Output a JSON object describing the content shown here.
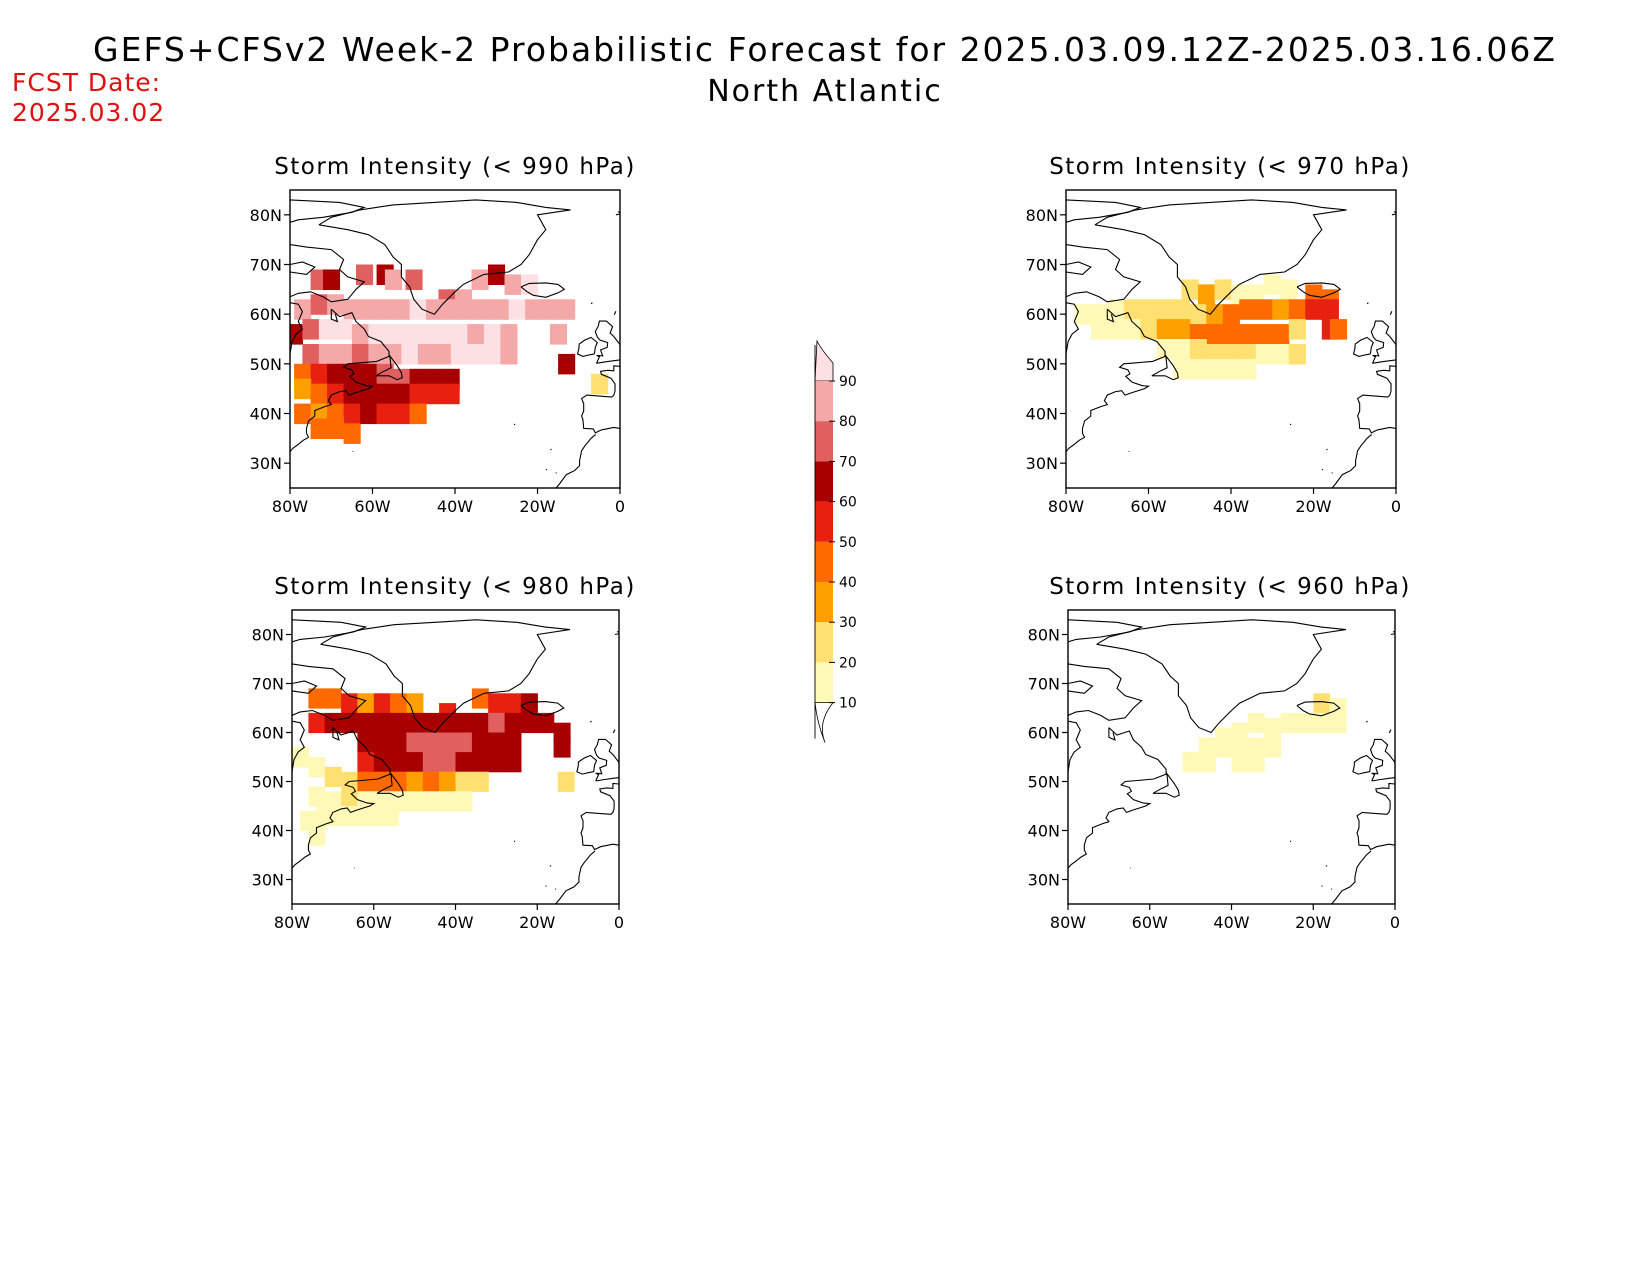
{
  "header": {
    "title": "GEFS+CFSv2 Week-2 Probabilistic Forecast for 2025.03.09.12Z-2025.03.16.06Z",
    "subtitle": "North Atlantic",
    "fcst_label": "FCST Date:",
    "fcst_value": "2025.03.02"
  },
  "axes": {
    "lon_labels": [
      "80W",
      "60W",
      "40W",
      "20W",
      "0"
    ],
    "lat_labels": [
      "80N",
      "70N",
      "60N",
      "50N",
      "40N",
      "30N"
    ],
    "lon_values": [
      -80,
      -60,
      -40,
      -20,
      0
    ],
    "lat_values": [
      80,
      70,
      60,
      50,
      40,
      30
    ],
    "lon_range": [
      -80,
      0
    ],
    "lat_range": [
      25,
      85
    ]
  },
  "colorbar": {
    "levels": [
      10,
      20,
      30,
      40,
      50,
      60,
      70,
      80,
      90
    ],
    "colors": [
      "#fff9b8",
      "#ffe070",
      "#ffa000",
      "#ff6a00",
      "#e82010",
      "#a80000",
      "#e06060",
      "#f4a8a8",
      "#fde0e4"
    ]
  },
  "panels": [
    {
      "id": "p990",
      "title": "Storm Intensity (< 990 hPa)",
      "cells": [
        [
          -73,
          67,
          70
        ],
        [
          -70,
          67,
          60
        ],
        [
          -62,
          68,
          70
        ],
        [
          -57,
          68,
          60
        ],
        [
          -55,
          67,
          80
        ],
        [
          -50,
          67,
          70
        ],
        [
          -42,
          63,
          70
        ],
        [
          -38,
          63,
          80
        ],
        [
          -34,
          67,
          80
        ],
        [
          -30,
          68,
          60
        ],
        [
          -26,
          66,
          80
        ],
        [
          -22,
          66,
          90
        ],
        [
          -77,
          61,
          80
        ],
        [
          -73,
          62,
          70
        ],
        [
          -69,
          62,
          80
        ],
        [
          -65,
          61,
          80
        ],
        [
          -61,
          61,
          80
        ],
        [
          -57,
          61,
          80
        ],
        [
          -53,
          61,
          80
        ],
        [
          -49,
          61,
          90
        ],
        [
          -45,
          61,
          80
        ],
        [
          -41,
          61,
          80
        ],
        [
          -37,
          61,
          80
        ],
        [
          -33,
          61,
          80
        ],
        [
          -29,
          61,
          80
        ],
        [
          -25,
          61,
          90
        ],
        [
          -21,
          61,
          80
        ],
        [
          -17,
          61,
          80
        ],
        [
          -13,
          61,
          80
        ],
        [
          -79,
          56,
          60
        ],
        [
          -75,
          57,
          70
        ],
        [
          -71,
          57,
          90
        ],
        [
          -67,
          57,
          90
        ],
        [
          -63,
          56,
          80
        ],
        [
          -59,
          56,
          90
        ],
        [
          -55,
          56,
          90
        ],
        [
          -51,
          56,
          90
        ],
        [
          -47,
          56,
          90
        ],
        [
          -43,
          56,
          90
        ],
        [
          -39,
          56,
          90
        ],
        [
          -35,
          56,
          80
        ],
        [
          -31,
          56,
          90
        ],
        [
          -27,
          56,
          80
        ],
        [
          -15,
          56,
          80
        ],
        [
          -75,
          52,
          70
        ],
        [
          -71,
          52,
          80
        ],
        [
          -67,
          52,
          80
        ],
        [
          -63,
          52,
          70
        ],
        [
          -59,
          52,
          80
        ],
        [
          -55,
          52,
          80
        ],
        [
          -51,
          52,
          90
        ],
        [
          -47,
          52,
          80
        ],
        [
          -43,
          52,
          80
        ],
        [
          -39,
          52,
          90
        ],
        [
          -35,
          52,
          90
        ],
        [
          -31,
          52,
          90
        ],
        [
          -27,
          52,
          80
        ],
        [
          -13,
          50,
          60
        ],
        [
          -77,
          48,
          40
        ],
        [
          -73,
          48,
          50
        ],
        [
          -69,
          48,
          60
        ],
        [
          -65,
          48,
          60
        ],
        [
          -61,
          48,
          60
        ],
        [
          -57,
          48,
          70
        ],
        [
          -53,
          47,
          70
        ],
        [
          -49,
          47,
          60
        ],
        [
          -45,
          47,
          60
        ],
        [
          -41,
          47,
          60
        ],
        [
          -77,
          45,
          30
        ],
        [
          -73,
          44,
          40
        ],
        [
          -69,
          44,
          50
        ],
        [
          -65,
          44,
          60
        ],
        [
          -61,
          44,
          60
        ],
        [
          -57,
          44,
          60
        ],
        [
          -53,
          44,
          60
        ],
        [
          -49,
          44,
          50
        ],
        [
          -45,
          44,
          50
        ],
        [
          -41,
          44,
          50
        ],
        [
          -77,
          40,
          40
        ],
        [
          -73,
          40,
          30
        ],
        [
          -69,
          40,
          40
        ],
        [
          -65,
          40,
          50
        ],
        [
          -61,
          40,
          60
        ],
        [
          -57,
          40,
          50
        ],
        [
          -53,
          40,
          50
        ],
        [
          -49,
          40,
          40
        ],
        [
          -73,
          37,
          40
        ],
        [
          -69,
          37,
          40
        ],
        [
          -65,
          36,
          40
        ],
        [
          -5,
          46,
          20
        ]
      ]
    },
    {
      "id": "p970",
      "title": "Storm Intensity (< 970 hPa)",
      "cells": [
        [
          -50,
          65,
          20
        ],
        [
          -46,
          64,
          30
        ],
        [
          -42,
          65,
          20
        ],
        [
          -38,
          64,
          10
        ],
        [
          -34,
          64,
          10
        ],
        [
          -30,
          66,
          10
        ],
        [
          -26,
          65,
          10
        ],
        [
          -20,
          64,
          40
        ],
        [
          -16,
          63,
          40
        ],
        [
          -76,
          60,
          10
        ],
        [
          -72,
          60,
          10
        ],
        [
          -68,
          61,
          10
        ],
        [
          -64,
          61,
          20
        ],
        [
          -60,
          61,
          20
        ],
        [
          -56,
          61,
          20
        ],
        [
          -52,
          61,
          20
        ],
        [
          -48,
          60,
          20
        ],
        [
          -44,
          60,
          30
        ],
        [
          -40,
          60,
          40
        ],
        [
          -36,
          61,
          40
        ],
        [
          -32,
          61,
          40
        ],
        [
          -28,
          61,
          30
        ],
        [
          -24,
          61,
          40
        ],
        [
          -20,
          61,
          50
        ],
        [
          -16,
          61,
          50
        ],
        [
          -72,
          57,
          10
        ],
        [
          -68,
          57,
          10
        ],
        [
          -64,
          57,
          10
        ],
        [
          -60,
          57,
          20
        ],
        [
          -56,
          57,
          30
        ],
        [
          -52,
          57,
          30
        ],
        [
          -48,
          56,
          40
        ],
        [
          -44,
          56,
          40
        ],
        [
          -40,
          56,
          40
        ],
        [
          -36,
          56,
          40
        ],
        [
          -32,
          56,
          40
        ],
        [
          -28,
          56,
          40
        ],
        [
          -24,
          57,
          20
        ],
        [
          -16,
          57,
          50
        ],
        [
          -14,
          57,
          40
        ],
        [
          -56,
          53,
          10
        ],
        [
          -52,
          53,
          10
        ],
        [
          -48,
          53,
          20
        ],
        [
          -44,
          52,
          20
        ],
        [
          -40,
          52,
          20
        ],
        [
          -36,
          52,
          20
        ],
        [
          -32,
          52,
          10
        ],
        [
          -28,
          52,
          10
        ],
        [
          -24,
          52,
          20
        ],
        [
          -52,
          49,
          10
        ],
        [
          -48,
          49,
          10
        ],
        [
          -44,
          49,
          10
        ],
        [
          -40,
          49,
          10
        ],
        [
          -36,
          49,
          10
        ]
      ]
    },
    {
      "id": "p980",
      "title": "Storm Intensity (< 980 hPa)",
      "cells": [
        [
          -74,
          67,
          40
        ],
        [
          -70,
          67,
          40
        ],
        [
          -66,
          66,
          50
        ],
        [
          -62,
          66,
          30
        ],
        [
          -58,
          66,
          50
        ],
        [
          -54,
          66,
          40
        ],
        [
          -50,
          66,
          30
        ],
        [
          -42,
          64,
          50
        ],
        [
          -34,
          67,
          40
        ],
        [
          -30,
          66,
          50
        ],
        [
          -26,
          66,
          50
        ],
        [
          -22,
          66,
          60
        ],
        [
          -74,
          62,
          50
        ],
        [
          -70,
          62,
          60
        ],
        [
          -66,
          62,
          60
        ],
        [
          -62,
          62,
          60
        ],
        [
          -58,
          62,
          60
        ],
        [
          -54,
          62,
          60
        ],
        [
          -50,
          62,
          60
        ],
        [
          -46,
          62,
          60
        ],
        [
          -42,
          62,
          60
        ],
        [
          -38,
          62,
          60
        ],
        [
          -34,
          62,
          60
        ],
        [
          -30,
          62,
          70
        ],
        [
          -26,
          62,
          60
        ],
        [
          -22,
          62,
          60
        ],
        [
          -18,
          62,
          60
        ],
        [
          -14,
          60,
          60
        ],
        [
          -62,
          58,
          60
        ],
        [
          -58,
          58,
          60
        ],
        [
          -54,
          58,
          60
        ],
        [
          -50,
          58,
          70
        ],
        [
          -46,
          58,
          70
        ],
        [
          -42,
          58,
          70
        ],
        [
          -38,
          58,
          70
        ],
        [
          -34,
          58,
          60
        ],
        [
          -30,
          58,
          60
        ],
        [
          -26,
          58,
          60
        ],
        [
          -14,
          57,
          60
        ],
        [
          -62,
          54,
          50
        ],
        [
          -58,
          54,
          60
        ],
        [
          -54,
          54,
          60
        ],
        [
          -50,
          54,
          60
        ],
        [
          -46,
          54,
          70
        ],
        [
          -42,
          54,
          70
        ],
        [
          -38,
          54,
          60
        ],
        [
          -34,
          54,
          60
        ],
        [
          -30,
          54,
          60
        ],
        [
          -26,
          54,
          60
        ],
        [
          -78,
          55,
          10
        ],
        [
          -74,
          53,
          10
        ],
        [
          -70,
          51,
          20
        ],
        [
          -66,
          50,
          20
        ],
        [
          -62,
          50,
          40
        ],
        [
          -58,
          50,
          40
        ],
        [
          -54,
          50,
          40
        ],
        [
          -50,
          50,
          30
        ],
        [
          -46,
          50,
          40
        ],
        [
          -42,
          50,
          30
        ],
        [
          -38,
          50,
          20
        ],
        [
          -34,
          50,
          20
        ],
        [
          -74,
          47,
          10
        ],
        [
          -70,
          46,
          10
        ],
        [
          -66,
          46,
          20
        ],
        [
          -62,
          46,
          10
        ],
        [
          -58,
          46,
          10
        ],
        [
          -54,
          46,
          10
        ],
        [
          -50,
          46,
          10
        ],
        [
          -46,
          46,
          10
        ],
        [
          -42,
          46,
          10
        ],
        [
          -38,
          46,
          10
        ],
        [
          -76,
          42,
          10
        ],
        [
          -72,
          43,
          10
        ],
        [
          -68,
          43,
          10
        ],
        [
          -64,
          43,
          10
        ],
        [
          -60,
          43,
          10
        ],
        [
          -56,
          43,
          10
        ],
        [
          -74,
          39,
          10
        ],
        [
          -13,
          50,
          20
        ]
      ]
    },
    {
      "id": "p960",
      "title": "Storm Intensity (< 960 hPa)",
      "cells": [
        [
          -18,
          66,
          20
        ],
        [
          -14,
          65,
          10
        ],
        [
          -26,
          62,
          10
        ],
        [
          -22,
          62,
          10
        ],
        [
          -18,
          62,
          10
        ],
        [
          -14,
          62,
          10
        ],
        [
          -34,
          62,
          10
        ],
        [
          -30,
          61,
          10
        ],
        [
          -38,
          60,
          10
        ],
        [
          -42,
          59,
          10
        ],
        [
          -46,
          57,
          10
        ],
        [
          -42,
          57,
          10
        ],
        [
          -38,
          57,
          10
        ],
        [
          -34,
          57,
          10
        ],
        [
          -30,
          57,
          10
        ],
        [
          -50,
          54,
          10
        ],
        [
          -46,
          54,
          10
        ],
        [
          -38,
          54,
          10
        ],
        [
          -34,
          54,
          10
        ]
      ]
    }
  ]
}
